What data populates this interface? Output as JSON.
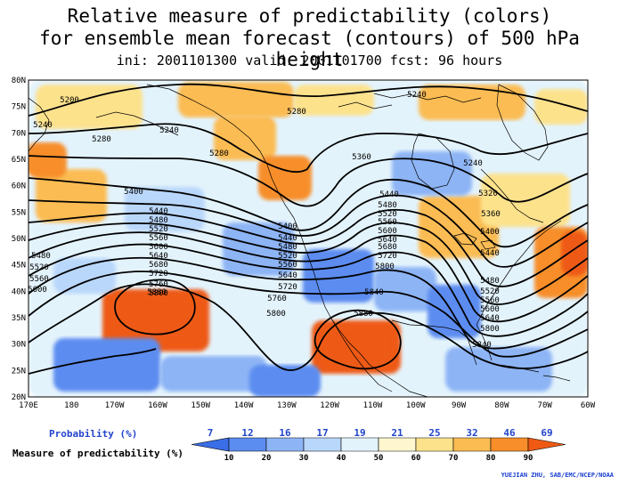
{
  "title": {
    "line1": "Relative measure of predictability (colors)",
    "line2": "for ensemble mean forecast (contours) of 500 hPa height",
    "line3": "ini: 2001101300  valid: 2001101700  fcst: 96 hours"
  },
  "lat_labels": [
    "80N",
    "75N",
    "70N",
    "65N",
    "60N",
    "55N",
    "50N",
    "45N",
    "40N",
    "35N",
    "30N",
    "25N",
    "20N"
  ],
  "lon_labels": [
    "170E",
    "180",
    "170W",
    "160W",
    "150W",
    "140W",
    "130W",
    "120W",
    "110W",
    "100W",
    "90W",
    "80W",
    "70W",
    "60W"
  ],
  "contour_labels": [
    "5200",
    "5240",
    "5280",
    "5320",
    "5360",
    "5400",
    "5440",
    "5480",
    "5520",
    "5560",
    "5600",
    "5640",
    "5680",
    "5720",
    "5760",
    "5800",
    "5840",
    "5880"
  ],
  "colorbar": {
    "probability_label": "Probability (%)",
    "probability_values": [
      "7",
      "12",
      "16",
      "17",
      "19",
      "21",
      "25",
      "32",
      "46",
      "69"
    ],
    "measure_label": "Measure of predictability (%)",
    "measure_values": [
      "10",
      "20",
      "30",
      "40",
      "50",
      "60",
      "70",
      "80",
      "90"
    ],
    "colors": [
      "#3a6ee6",
      "#5b8cf0",
      "#8db4f5",
      "#b9d7fb",
      "#e3f3fc",
      "#fdf6cf",
      "#fde28c",
      "#fbbc52",
      "#f78e2a",
      "#ee5a13"
    ]
  },
  "credit": "YUEJIAN ZHU, SAB/EMC/NCEP/NOAA"
}
